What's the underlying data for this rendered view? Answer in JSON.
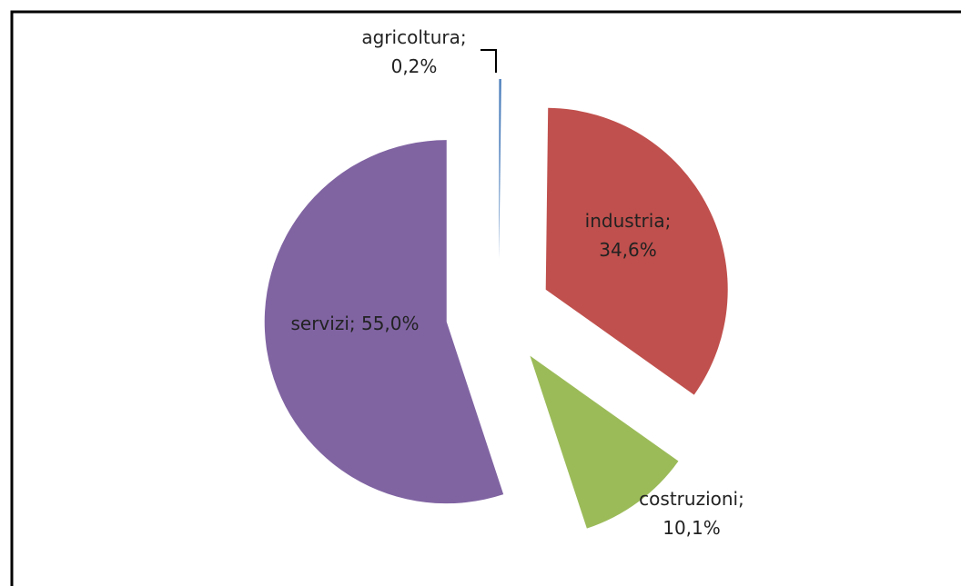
{
  "chart_data": {
    "type": "pie",
    "values": [
      0.2,
      34.6,
      10.1,
      55.0
    ],
    "value_labels": [
      "agricoltura; 0,2%",
      "industria; 34,6%",
      "costruzioni; 10,1%",
      "servizi; 55,0%"
    ],
    "colors": [
      "#4f81bd",
      "#c0504d",
      "#9bbb59",
      "#8064a2"
    ]
  }
}
